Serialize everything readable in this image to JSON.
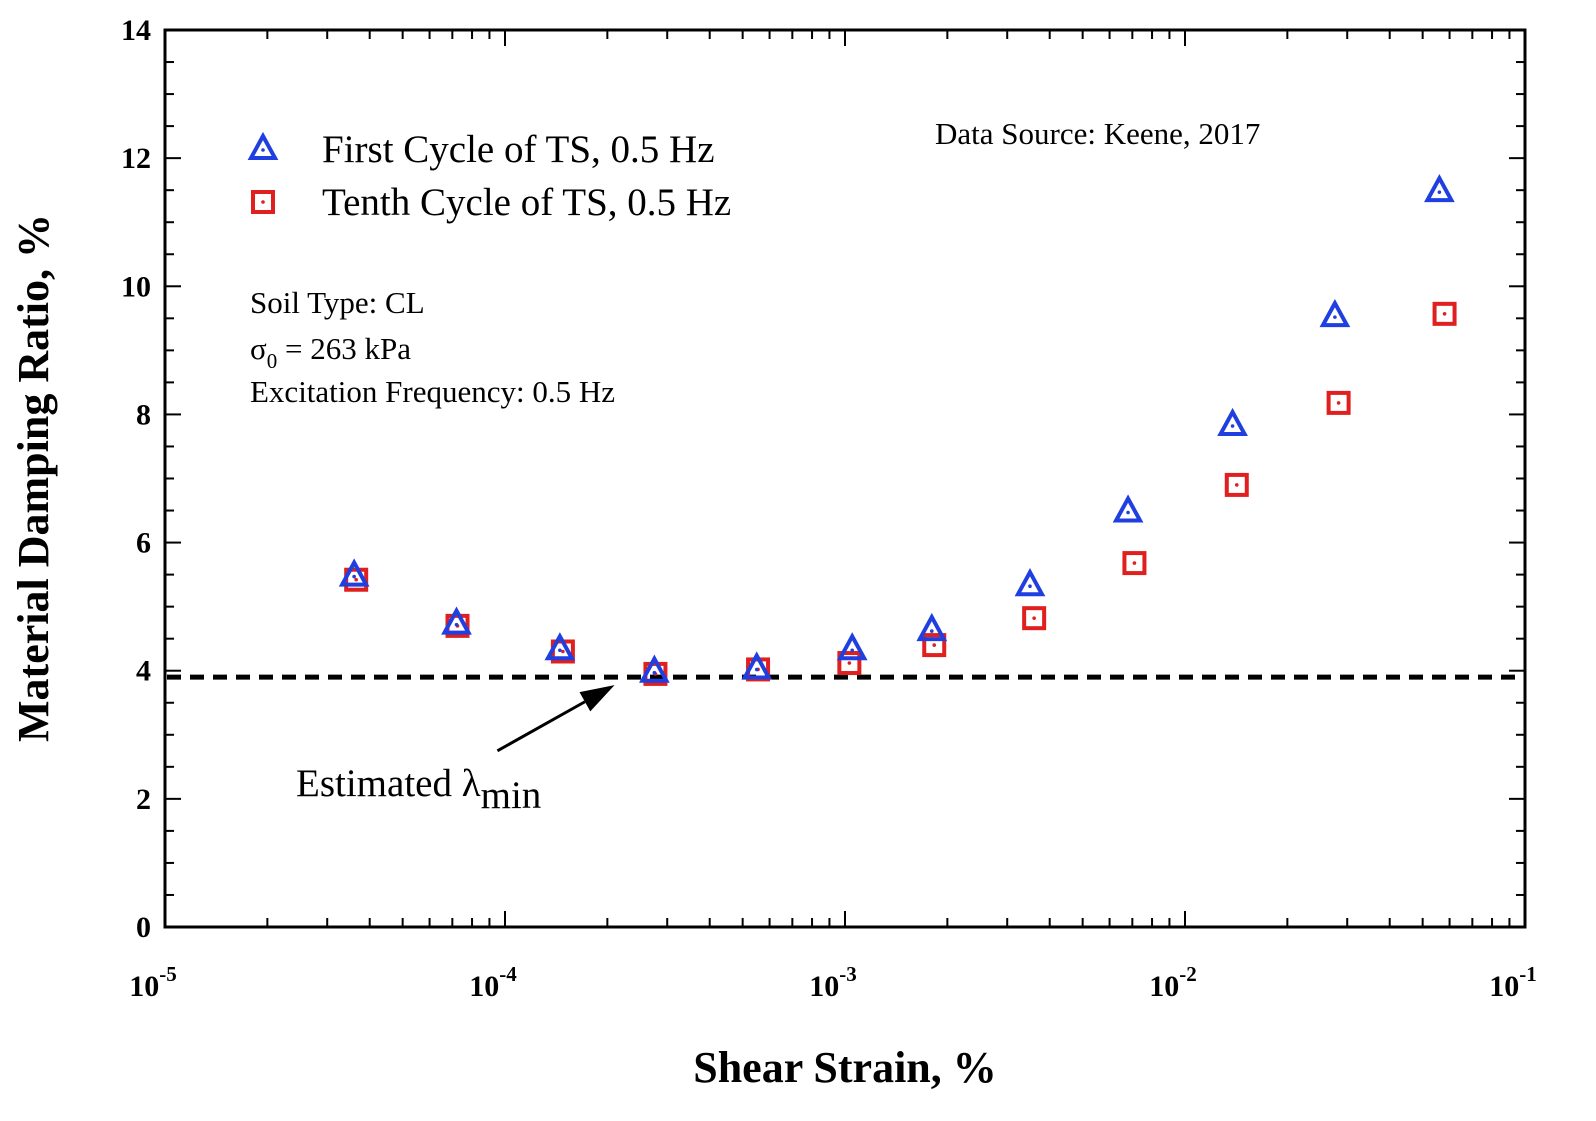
{
  "chart_data": {
    "type": "scatter",
    "title": "",
    "xlabel": "Shear Strain, %",
    "ylabel": "Material Damping Ratio, %",
    "x_scale": "log",
    "xlim": [
      1e-05,
      0.1
    ],
    "ylim": [
      0,
      14
    ],
    "x_tick_labels": [
      {
        "value": 1e-05,
        "base": "10",
        "exp": "-5"
      },
      {
        "value": 0.0001,
        "base": "10",
        "exp": "-4"
      },
      {
        "value": 0.001,
        "base": "10",
        "exp": "-3"
      },
      {
        "value": 0.01,
        "base": "10",
        "exp": "-2"
      },
      {
        "value": 0.1,
        "base": "10",
        "exp": "-1"
      }
    ],
    "y_ticks": [
      0,
      2,
      4,
      6,
      8,
      10,
      12,
      14
    ],
    "y_tick_labels": [
      "0",
      "2",
      "4",
      "6",
      "8",
      "10",
      "12",
      "14"
    ],
    "series": [
      {
        "name": "First Cycle of TS, 0.5 Hz",
        "marker": "triangle",
        "color": "#1f3fe0",
        "x": [
          3.6e-05,
          7.2e-05,
          0.000145,
          0.000275,
          0.00055,
          0.00105,
          0.0018,
          0.0035,
          0.0068,
          0.0138,
          0.0276,
          0.056
        ],
        "y": [
          5.5,
          4.75,
          4.35,
          4.0,
          4.05,
          4.35,
          4.65,
          5.35,
          6.5,
          7.85,
          9.55,
          11.5
        ]
      },
      {
        "name": "Tenth Cycle of TS, 0.5 Hz",
        "marker": "square",
        "color": "#e01f1f",
        "x": [
          3.65e-05,
          7.25e-05,
          0.000148,
          0.000277,
          0.000555,
          0.00103,
          0.00183,
          0.0036,
          0.0071,
          0.0142,
          0.0283,
          0.058
        ],
        "y": [
          5.42,
          4.7,
          4.3,
          3.95,
          4.02,
          4.12,
          4.4,
          4.82,
          5.68,
          6.9,
          8.18,
          9.57
        ]
      }
    ],
    "reference_line": {
      "y": 3.9,
      "style": "dashed",
      "color": "#000000"
    },
    "annotations": {
      "data_source": "Data Source: Keene, 2017",
      "soil_type": "Soil Type: CL",
      "sigma_symbol": "σ",
      "sigma_sub": "0",
      "sigma_value": " = 263 kPa",
      "frequency": "Excitation Frequency: 0.5 Hz",
      "estimated_label": "Estimated λ",
      "estimated_sub": "min",
      "arrow_target": {
        "x": 0.00021,
        "y": 3.9
      },
      "arrow_tail": {
        "x": 9.5e-05,
        "y": 2.75
      }
    },
    "legend_position": "top-left"
  }
}
